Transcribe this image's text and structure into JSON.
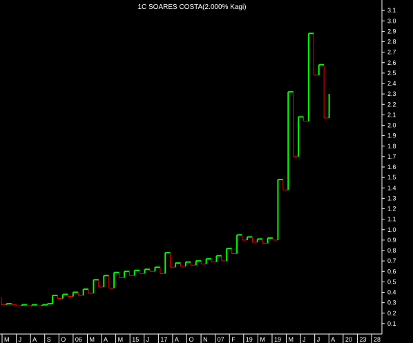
{
  "chart_data": {
    "type": "line",
    "subtype": "kagi",
    "title": "1C SOARES COSTA(2.000% Kagi)",
    "xlabel": "",
    "ylabel": "",
    "ylim": [
      0,
      3.2
    ],
    "y_ticks": [
      "0.1",
      "0.2",
      "0.3",
      "0.4",
      "0.5",
      "0.6",
      "0.7",
      "0.8",
      "0.9",
      "1.0",
      "1.1",
      "1.2",
      "1.3",
      "1.4",
      "1.5",
      "1.6",
      "1.7",
      "1.8",
      "1.9",
      "2.0",
      "2.1",
      "2.2",
      "2.3",
      "2.4",
      "2.5",
      "2.6",
      "2.7",
      "2.8",
      "2.9",
      "3.0",
      "3.1"
    ],
    "x_ticks": [
      "M",
      "J",
      "A",
      "S",
      "O",
      "06",
      "M",
      "A",
      "M",
      "15",
      "J",
      "17",
      "A",
      "O",
      "N",
      "07",
      "F",
      "19",
      "M",
      "19",
      "M",
      "J",
      "J",
      "A",
      "20",
      "23",
      "28"
    ],
    "grid": false,
    "colors": {
      "up": "#00ff00",
      "down": "#ff0000",
      "background": "#000000",
      "axis": "#ffffff"
    },
    "kagi_prices": [
      0.35,
      0.28,
      0.29,
      0.28,
      0.27,
      0.28,
      0.27,
      0.28,
      0.27,
      0.28,
      0.29,
      0.37,
      0.34,
      0.38,
      0.36,
      0.4,
      0.37,
      0.43,
      0.39,
      0.52,
      0.45,
      0.56,
      0.44,
      0.59,
      0.54,
      0.6,
      0.56,
      0.61,
      0.58,
      0.62,
      0.6,
      0.64,
      0.58,
      0.78,
      0.64,
      0.68,
      0.65,
      0.69,
      0.66,
      0.7,
      0.67,
      0.72,
      0.69,
      0.75,
      0.7,
      0.82,
      0.77,
      0.95,
      0.9,
      0.93,
      0.88,
      0.91,
      0.87,
      0.92,
      0.9,
      1.48,
      1.38,
      2.32,
      1.7,
      2.08,
      2.04,
      2.88,
      2.48,
      2.58,
      2.07,
      2.3
    ]
  }
}
